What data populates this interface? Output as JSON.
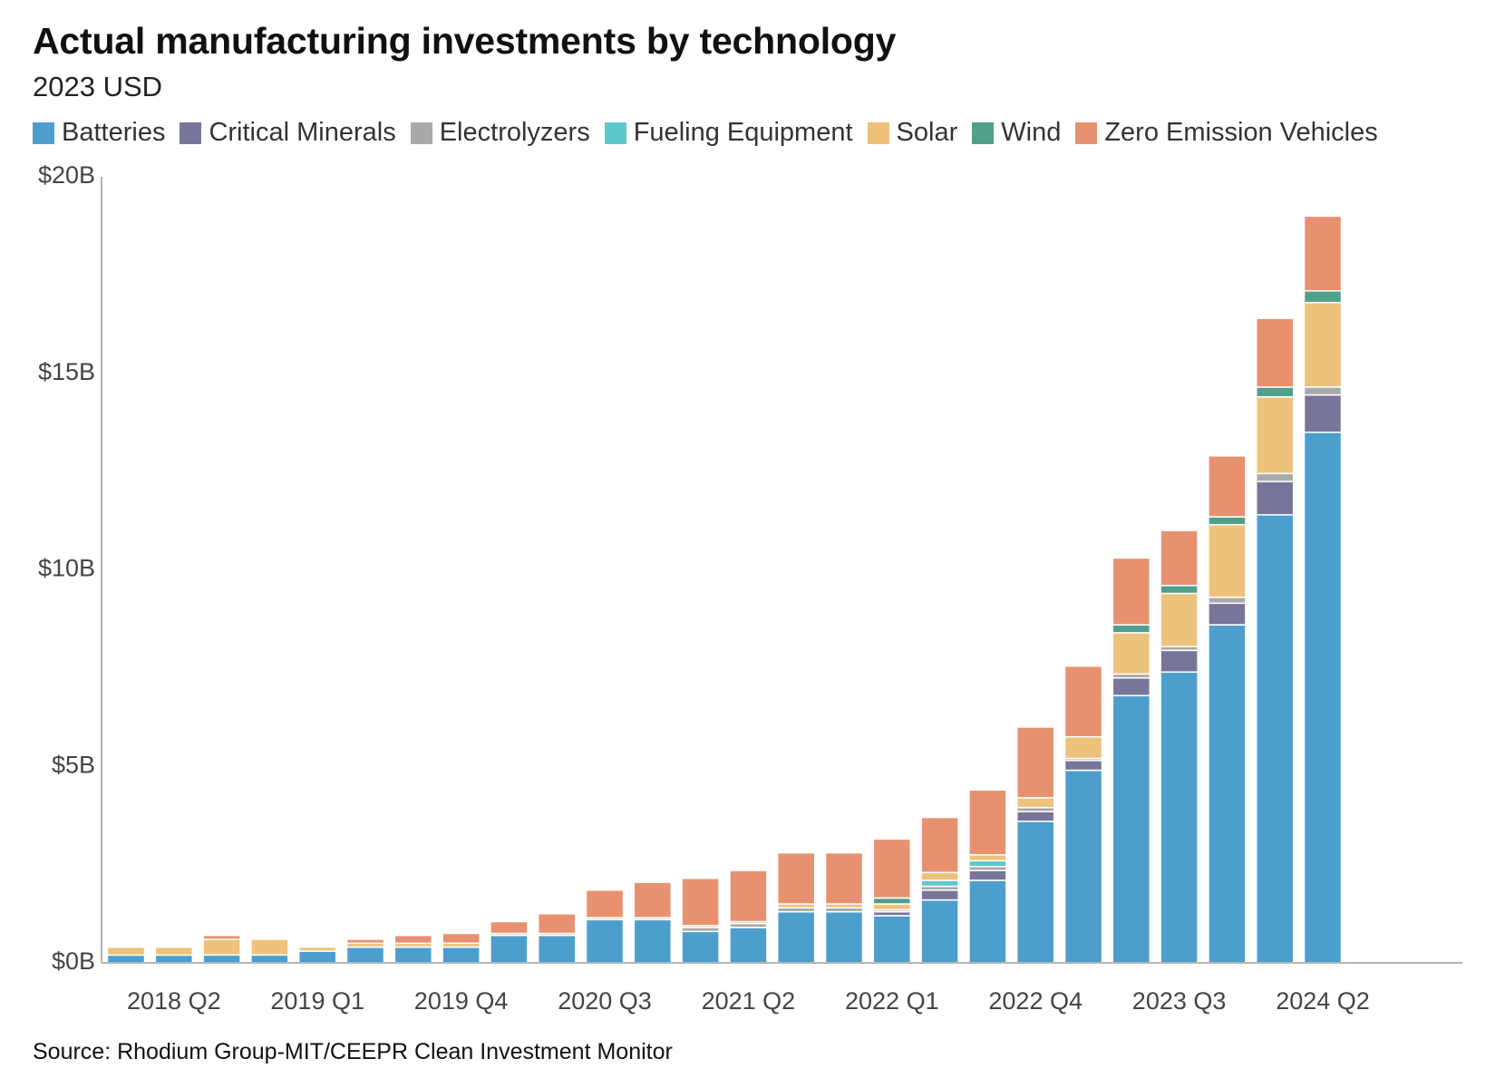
{
  "title": "Actual manufacturing investments by technology",
  "subtitle": "2023 USD",
  "source": "Source: Rhodium Group-MIT/CEEPR Clean Investment Monitor",
  "legend": [
    {
      "name": "Batteries",
      "color": "#4c9fcd"
    },
    {
      "name": "Critical Minerals",
      "color": "#77769a"
    },
    {
      "name": "Electrolyzers",
      "color": "#a9a9a9"
    },
    {
      "name": "Fueling Equipment",
      "color": "#5dc9cf"
    },
    {
      "name": "Solar",
      "color": "#edc27b"
    },
    {
      "name": "Wind",
      "color": "#50a08b"
    },
    {
      "name": "Zero Emission Vehicles",
      "color": "#e89171"
    }
  ],
  "chart_data": {
    "type": "bar",
    "stacked": true,
    "y_unit": "billion USD (2023)",
    "ylim": [
      0,
      20
    ],
    "y_ticks": [
      {
        "value": 0,
        "label": "$0B"
      },
      {
        "value": 5,
        "label": "$5B"
      },
      {
        "value": 10,
        "label": "$10B"
      },
      {
        "value": 15,
        "label": "$15B"
      },
      {
        "value": 20,
        "label": "$20B"
      }
    ],
    "categories": [
      "2018 Q1",
      "2018 Q2",
      "2018 Q3",
      "2018 Q4",
      "2019 Q1",
      "2019 Q2",
      "2019 Q3",
      "2019 Q4",
      "2020 Q1",
      "2020 Q2",
      "2020 Q3",
      "2020 Q4",
      "2021 Q1",
      "2021 Q2",
      "2021 Q3",
      "2021 Q4",
      "2022 Q1",
      "2022 Q2",
      "2022 Q3",
      "2022 Q4",
      "2023 Q1",
      "2023 Q2",
      "2023 Q3",
      "2023 Q4",
      "2024 Q1",
      "2024 Q2"
    ],
    "x_tick_labels": [
      "2018 Q2",
      "2019 Q1",
      "2019 Q4",
      "2020 Q3",
      "2021 Q2",
      "2022 Q1",
      "2022 Q4",
      "2023 Q3",
      "2024 Q2"
    ],
    "series": [
      {
        "name": "Batteries",
        "values": [
          0.2,
          0.2,
          0.2,
          0.2,
          0.3,
          0.4,
          0.4,
          0.4,
          0.7,
          0.7,
          1.1,
          1.1,
          0.8,
          0.9,
          1.3,
          1.3,
          1.2,
          1.6,
          2.1,
          3.6,
          4.9,
          6.8,
          7.4,
          8.6,
          11.4,
          13.5
        ]
      },
      {
        "name": "Critical Minerals",
        "values": [
          0,
          0,
          0,
          0,
          0,
          0,
          0,
          0,
          0,
          0,
          0,
          0,
          0,
          0,
          0,
          0,
          0.1,
          0.25,
          0.25,
          0.25,
          0.25,
          0.45,
          0.55,
          0.55,
          0.85,
          0.95
        ]
      },
      {
        "name": "Electrolyzers",
        "values": [
          0,
          0,
          0,
          0,
          0,
          0,
          0,
          0,
          0,
          0,
          0,
          0,
          0.1,
          0.1,
          0.1,
          0.1,
          0.05,
          0.1,
          0.1,
          0.1,
          0.05,
          0.1,
          0.1,
          0.15,
          0.2,
          0.2
        ]
      },
      {
        "name": "Fueling Equipment",
        "values": [
          0,
          0,
          0,
          0,
          0,
          0,
          0,
          0,
          0,
          0,
          0,
          0,
          0,
          0,
          0,
          0,
          0,
          0.15,
          0.15,
          0,
          0,
          0,
          0,
          0,
          0,
          0
        ]
      },
      {
        "name": "Solar",
        "values": [
          0.2,
          0.2,
          0.4,
          0.4,
          0.1,
          0.1,
          0.1,
          0.1,
          0.05,
          0.05,
          0.05,
          0.05,
          0.05,
          0.05,
          0.1,
          0.1,
          0.15,
          0.2,
          0.15,
          0.25,
          0.55,
          1.05,
          1.35,
          1.85,
          1.95,
          2.15
        ]
      },
      {
        "name": "Wind",
        "values": [
          0,
          0,
          0,
          0,
          0,
          0,
          0,
          0,
          0,
          0,
          0,
          0,
          0,
          0,
          0,
          0,
          0.15,
          0,
          0,
          0,
          0,
          0.2,
          0.2,
          0.2,
          0.25,
          0.3
        ]
      },
      {
        "name": "Zero Emission Vehicles",
        "values": [
          0,
          0,
          0.1,
          0,
          0,
          0.1,
          0.2,
          0.25,
          0.3,
          0.5,
          0.7,
          0.9,
          1.2,
          1.3,
          1.3,
          1.3,
          1.5,
          1.4,
          1.65,
          1.8,
          1.8,
          1.7,
          1.4,
          1.55,
          1.75,
          1.9
        ]
      }
    ]
  }
}
